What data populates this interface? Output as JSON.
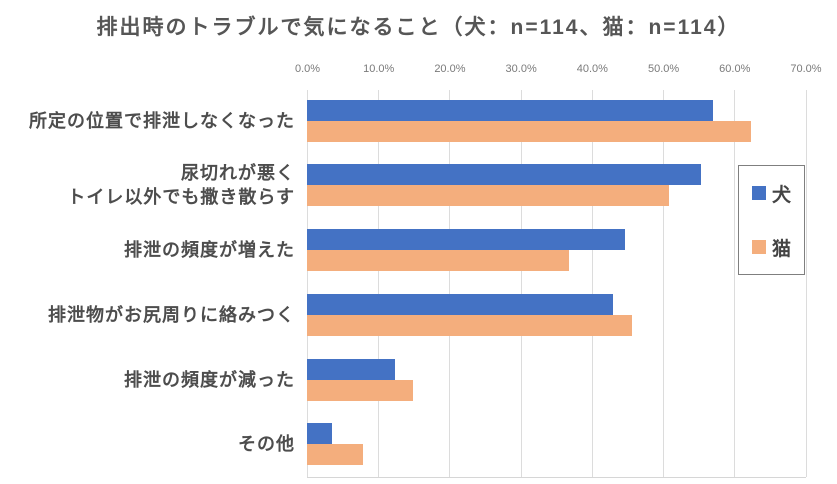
{
  "chart_data": {
    "type": "bar",
    "orientation": "horizontal",
    "title": "排出時のトラブルで気になること（犬：n=114、猫：n=114）",
    "sample_sizes": {
      "犬": 114,
      "猫": 114
    },
    "categories": [
      "所定の位置で排泄しなくなった",
      "尿切れが悪く\nトイレ以外でも撒き散らす",
      "排泄の頻度が増えた",
      "排泄物がお尻周りに絡みつく",
      "排泄の頻度が減った",
      "その他"
    ],
    "series": [
      {
        "id": "dog",
        "name": "犬",
        "color": "#4472C4",
        "values": [
          57.0,
          55.3,
          44.7,
          43.0,
          12.3,
          3.5
        ]
      },
      {
        "id": "cat",
        "name": "猫",
        "color": "#F4AE7D",
        "values": [
          62.3,
          50.9,
          36.8,
          45.6,
          14.9,
          7.9
        ]
      }
    ],
    "value_unit": "%",
    "xlim": [
      0,
      70
    ],
    "x_ticks": [
      "0.0%",
      "10.0%",
      "20.0%",
      "30.0%",
      "40.0%",
      "50.0%",
      "60.0%",
      "70.0%"
    ],
    "grid": true,
    "legend_position": "right-inside"
  },
  "colors": {
    "grid": "#dcdcdc",
    "axis_line": "#d6d6d6",
    "title_text": "#565656",
    "category_text": "#4d4d4d",
    "tick_text": "#7a7a7a",
    "legend_border": "#7f7f7f"
  }
}
